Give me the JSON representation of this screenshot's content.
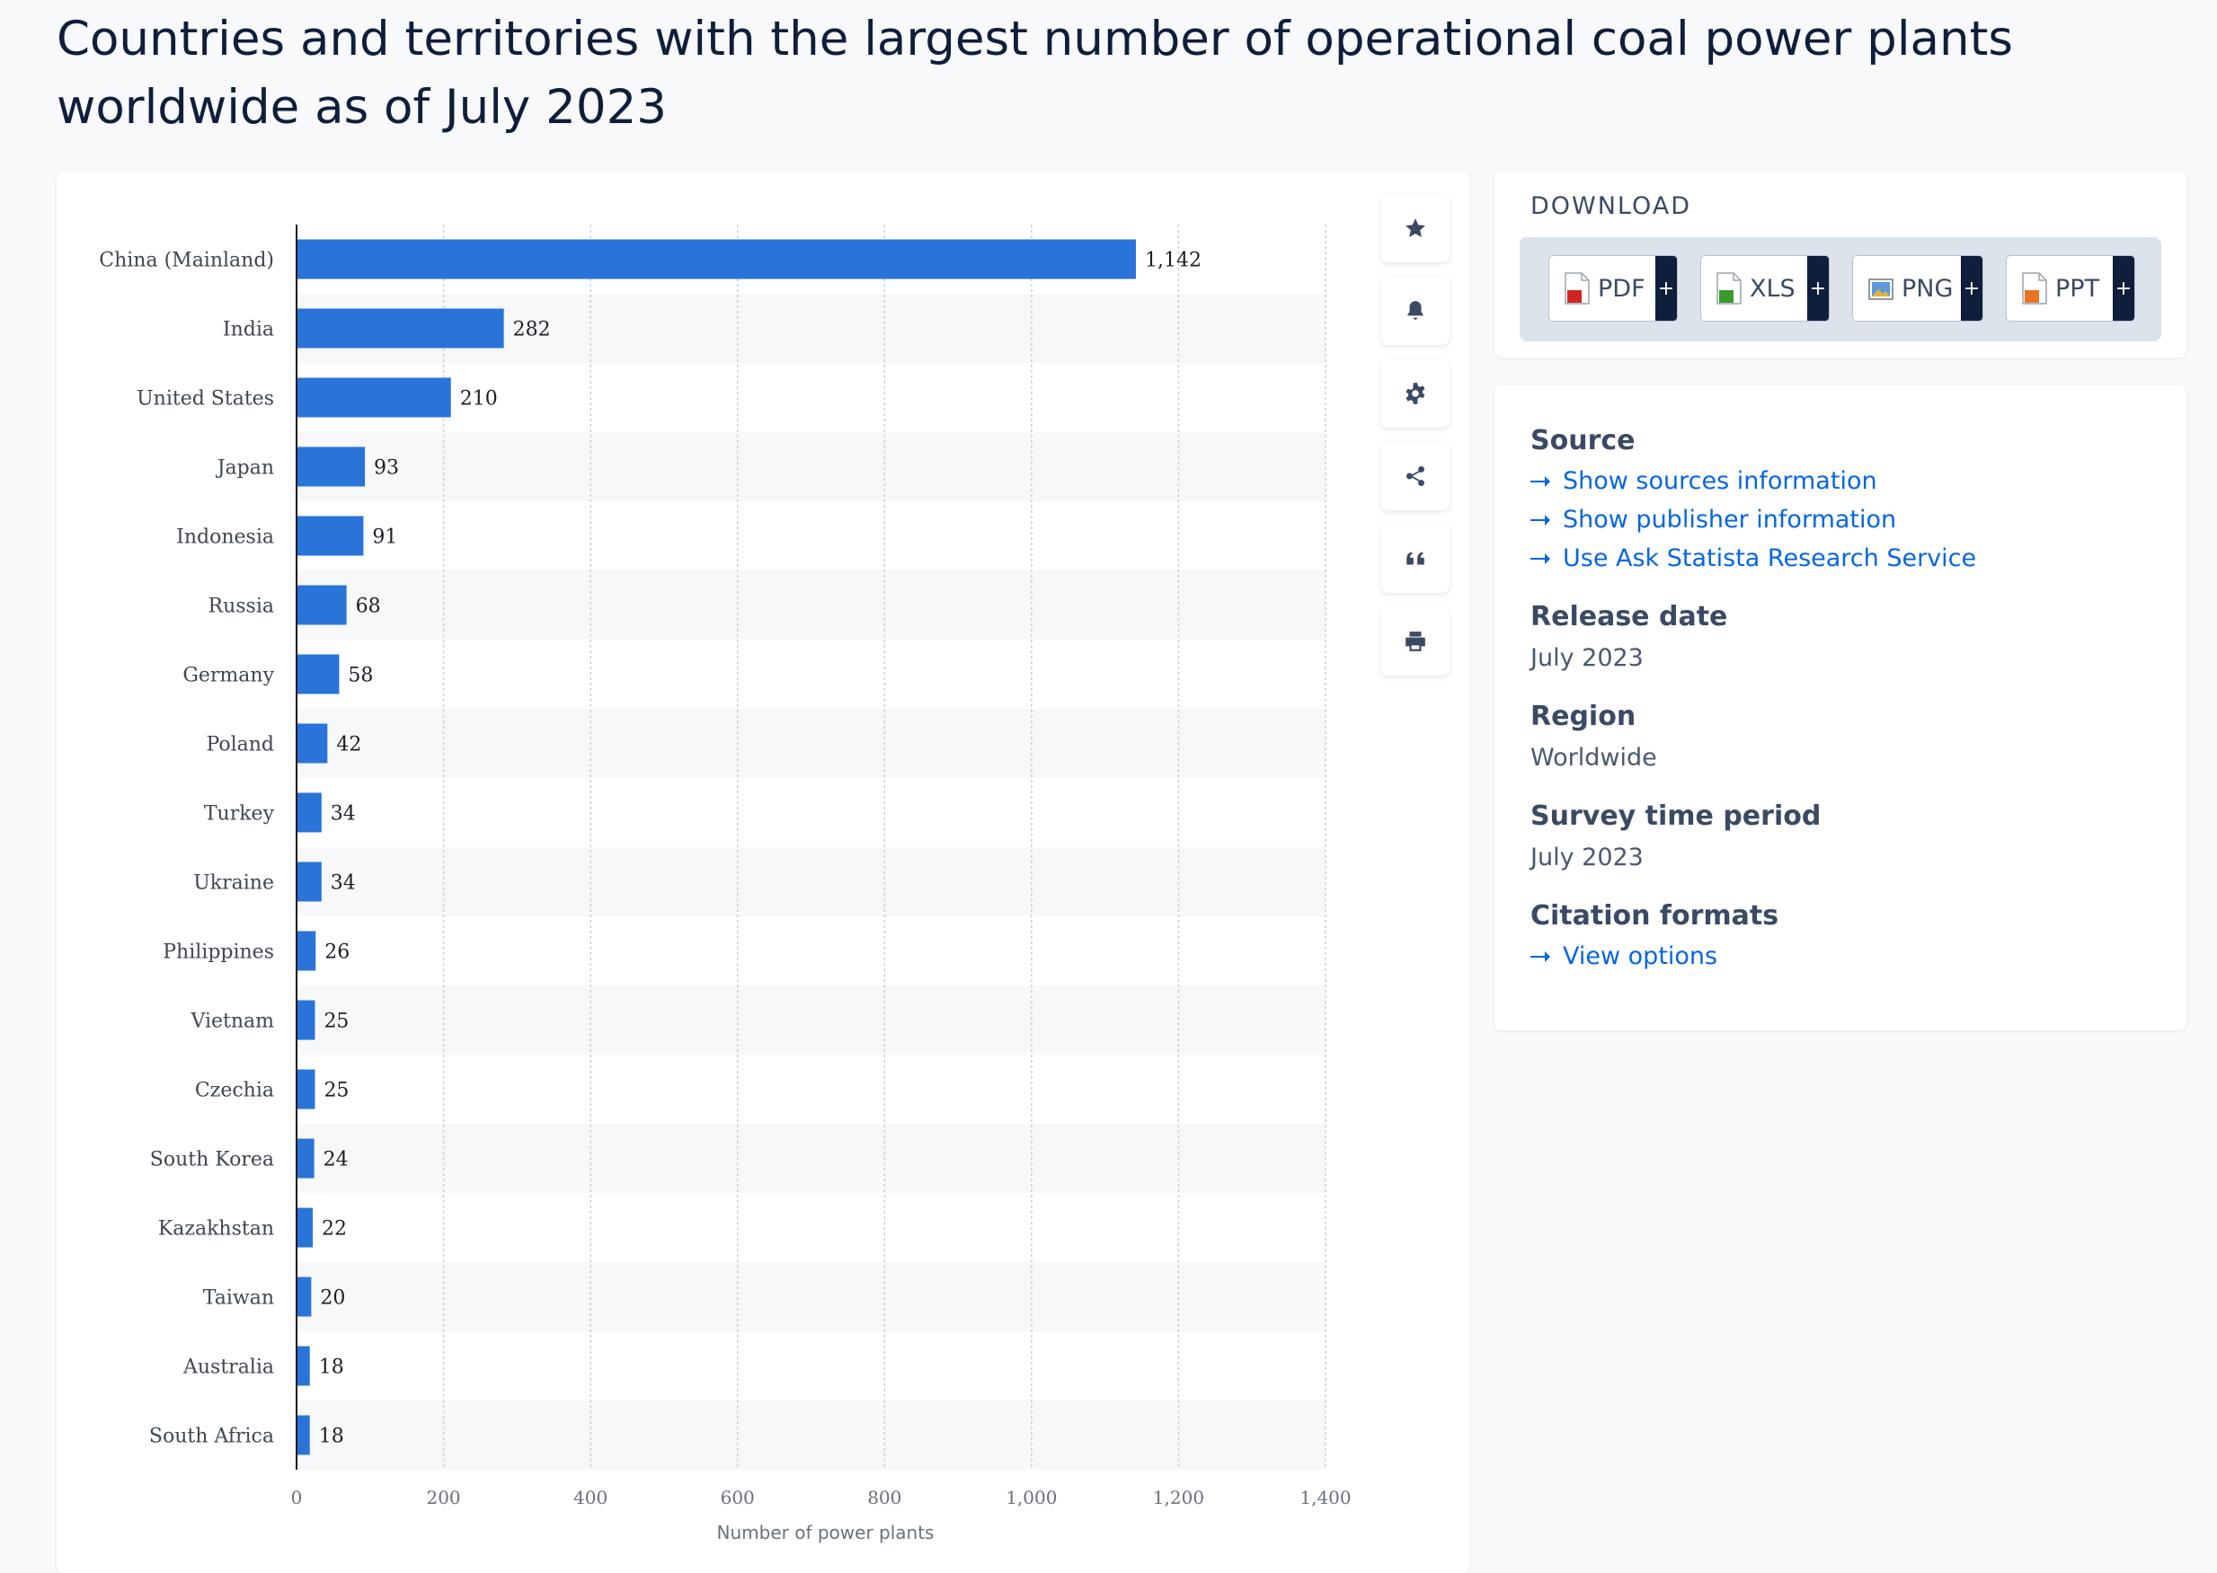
{
  "page": {
    "title": "Countries and territories with the largest number of operational coal power plants worldwide as of July 2023"
  },
  "colors": {
    "bar": "#2a73d9",
    "band": "#f7f8f9",
    "grid": "#c9ced6",
    "axis": "#1a1a1a",
    "link": "#0666e0"
  },
  "chart_data": {
    "type": "bar",
    "orientation": "horizontal",
    "categories": [
      "China (Mainland)",
      "India",
      "United States",
      "Japan",
      "Indonesia",
      "Russia",
      "Germany",
      "Poland",
      "Turkey",
      "Ukraine",
      "Philippines",
      "Vietnam",
      "Czechia",
      "South Korea",
      "Kazakhstan",
      "Taiwan",
      "Australia",
      "South Africa"
    ],
    "values": [
      1142,
      282,
      210,
      93,
      91,
      68,
      58,
      42,
      34,
      34,
      26,
      25,
      25,
      24,
      22,
      20,
      18,
      18
    ],
    "value_labels": [
      "1,142",
      "282",
      "210",
      "93",
      "91",
      "68",
      "58",
      "42",
      "34",
      "34",
      "26",
      "25",
      "25",
      "24",
      "22",
      "20",
      "18",
      "18"
    ],
    "xlim": [
      0,
      1400
    ],
    "xticks": [
      0,
      200,
      400,
      600,
      800,
      1000,
      1200,
      1400
    ],
    "xtick_labels": [
      "0",
      "200",
      "400",
      "600",
      "800",
      "1,000",
      "1,200",
      "1,400"
    ],
    "xlabel": "Number of power plants",
    "ylabel": "",
    "grid": true,
    "legend": "none"
  },
  "toolbar": {
    "icons": [
      "star-icon",
      "bell-icon",
      "gear-icon",
      "share-icon",
      "quote-icon",
      "print-icon"
    ]
  },
  "download": {
    "title": "DOWNLOAD",
    "buttons": [
      {
        "label": "PDF",
        "plus": "+",
        "icon": "pdf-file-icon"
      },
      {
        "label": "XLS",
        "plus": "+",
        "icon": "xls-file-icon"
      },
      {
        "label": "PNG",
        "plus": "+",
        "icon": "png-file-icon"
      },
      {
        "label": "PPT",
        "plus": "+",
        "icon": "ppt-file-icon"
      }
    ]
  },
  "info": {
    "source_heading": "Source",
    "source_links": [
      "Show sources information",
      "Show publisher information",
      "Use Ask Statista Research Service"
    ],
    "release_heading": "Release date",
    "release_value": "July 2023",
    "region_heading": "Region",
    "region_value": "Worldwide",
    "survey_heading": "Survey time period",
    "survey_value": "July 2023",
    "citation_heading": "Citation formats",
    "citation_link": "View options"
  }
}
